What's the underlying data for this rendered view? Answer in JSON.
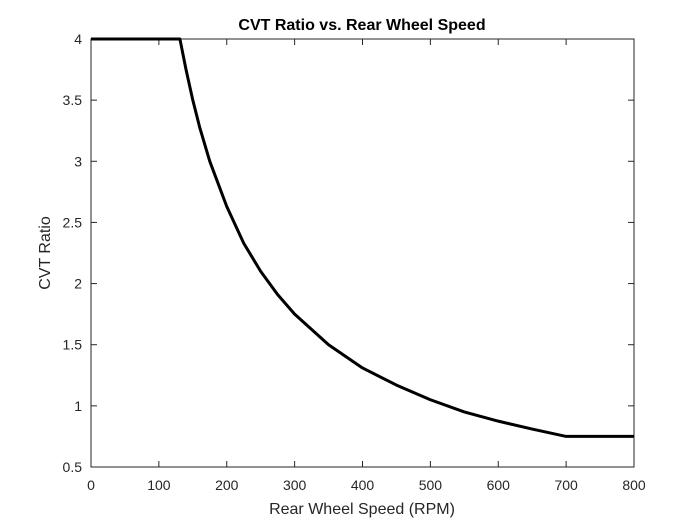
{
  "chart_data": {
    "type": "line",
    "title": "CVT Ratio vs. Rear Wheel Speed",
    "xlabel": "Rear Wheel Speed (RPM)",
    "ylabel": "CVT Ratio",
    "xlim": [
      0,
      800
    ],
    "ylim": [
      0.5,
      4
    ],
    "xticks": [
      0,
      100,
      200,
      300,
      400,
      500,
      600,
      700,
      800
    ],
    "yticks": [
      0.5,
      1,
      1.5,
      2,
      2.5,
      3,
      3.5,
      4
    ],
    "xtick_labels": [
      "0",
      "100",
      "200",
      "300",
      "400",
      "500",
      "600",
      "700",
      "800"
    ],
    "ytick_labels": [
      "0.5",
      "1",
      "1.5",
      "2",
      "2.5",
      "3",
      "3.5",
      "4"
    ],
    "grid": false,
    "series": [
      {
        "color": "#000000",
        "x": [
          0,
          131,
          140,
          150,
          160,
          175,
          200,
          225,
          250,
          275,
          300,
          350,
          400,
          450,
          500,
          550,
          600,
          650,
          700,
          800
        ],
        "y": [
          4,
          4,
          3.75,
          3.5,
          3.28,
          3.0,
          2.63,
          2.33,
          2.1,
          1.91,
          1.75,
          1.5,
          1.31,
          1.17,
          1.05,
          0.95,
          0.875,
          0.81,
          0.75,
          0.75
        ]
      }
    ]
  }
}
